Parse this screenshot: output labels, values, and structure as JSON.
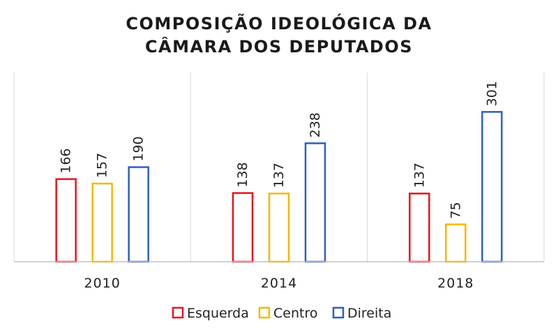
{
  "chart_data": {
    "type": "bar",
    "title_lines": [
      "COMPOSIÇÃO IDEOLÓGICA DA",
      "CÂMARA DOS DEPUTADOS"
    ],
    "categories": [
      "2010",
      "2014",
      "2018"
    ],
    "series": [
      {
        "name": "Esquerda",
        "values": [
          166,
          138,
          137
        ],
        "color": "#e8141c"
      },
      {
        "name": "Centro",
        "values": [
          157,
          137,
          75
        ],
        "color": "#f5b800"
      },
      {
        "name": "Direita",
        "values": [
          190,
          238,
          301
        ],
        "color": "#2f5fbf"
      }
    ],
    "ylim": [
      0,
      380
    ],
    "data_labels": true,
    "grid": false,
    "category_separators": true,
    "legend_position": "bottom",
    "bar_style": "outlined"
  }
}
